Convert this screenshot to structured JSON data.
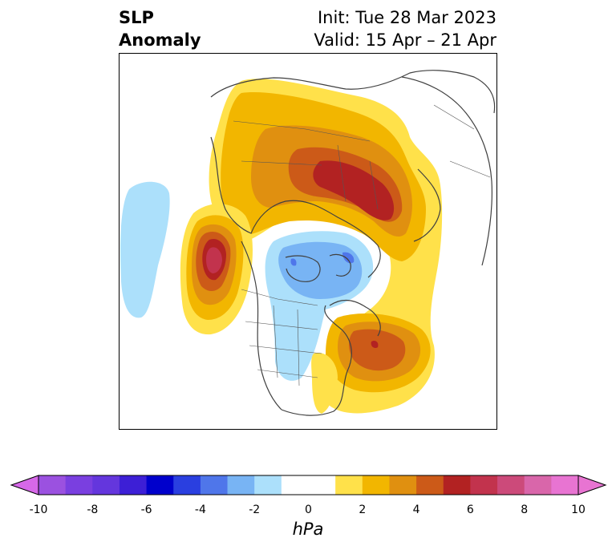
{
  "title": {
    "variable_line1": "SLP",
    "variable_line2": "Anomaly",
    "init": "Init: Tue 28 Mar 2023",
    "valid": "Valid: 15 Apr – 21 Apr"
  },
  "map": {
    "projection": "north-polar-stereographic",
    "field": "sea-level pressure anomaly",
    "features": [
      {
        "name": "positive-anomaly-siberia",
        "max_hpa": 7
      },
      {
        "name": "positive-anomaly-north-pacific",
        "max_hpa": 8
      },
      {
        "name": "positive-anomaly-north-atlantic",
        "max_hpa": 7
      },
      {
        "name": "negative-anomaly-arctic-canada",
        "min_hpa": -3
      },
      {
        "name": "negative-anomaly-central-pacific",
        "min_hpa": -2
      }
    ]
  },
  "colorbar": {
    "unit": "hPa",
    "range": [
      -10,
      10
    ],
    "extend": "both",
    "ticks": [
      "-10",
      "-8",
      "-6",
      "-4",
      "-2",
      "0",
      "2",
      "4",
      "6",
      "8",
      "10"
    ],
    "bins": [
      {
        "from": -10,
        "to": -9,
        "color": "#9b51e0"
      },
      {
        "from": -9,
        "to": -8,
        "color": "#7a3fe0"
      },
      {
        "from": -8,
        "to": -7,
        "color": "#6436dd"
      },
      {
        "from": -7,
        "to": -6,
        "color": "#3d1fd6"
      },
      {
        "from": -6,
        "to": -5,
        "color": "#0000cc"
      },
      {
        "from": -5,
        "to": -4,
        "color": "#2a3fe0"
      },
      {
        "from": -4,
        "to": -3,
        "color": "#4f76ea"
      },
      {
        "from": -3,
        "to": -2,
        "color": "#78b4f4"
      },
      {
        "from": -2,
        "to": -1,
        "color": "#ace0fb"
      },
      {
        "from": -1,
        "to": 1,
        "color": "#ffffff"
      },
      {
        "from": 1,
        "to": 2,
        "color": "#ffe14a"
      },
      {
        "from": 2,
        "to": 3,
        "color": "#f2b600"
      },
      {
        "from": 3,
        "to": 4,
        "color": "#e09010"
      },
      {
        "from": 4,
        "to": 5,
        "color": "#cc5a18"
      },
      {
        "from": 5,
        "to": 6,
        "color": "#b22222"
      },
      {
        "from": 6,
        "to": 7,
        "color": "#c2334d"
      },
      {
        "from": 7,
        "to": 8,
        "color": "#cc4a7a"
      },
      {
        "from": 8,
        "to": 9,
        "color": "#d966aa"
      },
      {
        "from": 9,
        "to": 10,
        "color": "#e874d2"
      }
    ],
    "under_color": "#d668e8",
    "over_color": "#e874d2"
  }
}
